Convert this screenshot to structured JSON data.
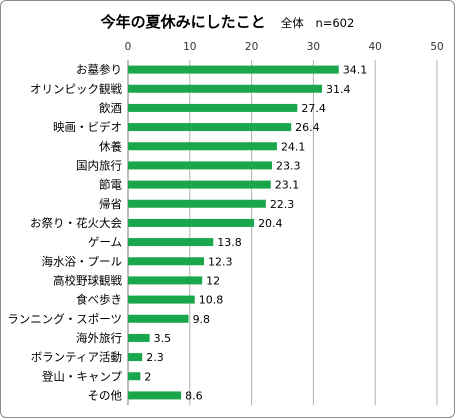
{
  "chart_data": {
    "type": "bar",
    "orientation": "horizontal",
    "title": "今年の夏休みにしたこと",
    "subtitle": "全体",
    "sample_label": "n=602",
    "categories": [
      "お墓参り",
      "オリンピック観戦",
      "飲酒",
      "映画・ビデオ",
      "休養",
      "国内旅行",
      "節電",
      "帰省",
      "お祭り・花火大会",
      "ゲーム",
      "海水浴・プール",
      "高校野球観戦",
      "食べ歩き",
      "ランニング・スポーツ",
      "海外旅行",
      "ボランティア活動",
      "登山・キャンプ",
      "その他"
    ],
    "values": [
      34.1,
      31.4,
      27.4,
      26.4,
      24.1,
      23.3,
      23.1,
      22.3,
      20.4,
      13.8,
      12.3,
      12,
      10.8,
      9.8,
      3.5,
      2.3,
      2,
      8.6
    ],
    "value_labels": [
      "34.1",
      "31.4",
      "27.4",
      "26.4",
      "24.1",
      "23.3",
      "23.1",
      "22.3",
      "20.4",
      "13.8",
      "12.3",
      "12",
      "10.8",
      "9.8",
      "3.5",
      "2.3",
      "2",
      "8.6"
    ],
    "xlim": [
      0,
      50
    ],
    "xticks": [
      "0",
      "10",
      "20",
      "30",
      "40",
      "50"
    ],
    "tick_positions": [
      0,
      10,
      20,
      30,
      40,
      50
    ],
    "grid": true,
    "bar_color": "#1aa64a",
    "grid_color": "#b0b0b0"
  }
}
